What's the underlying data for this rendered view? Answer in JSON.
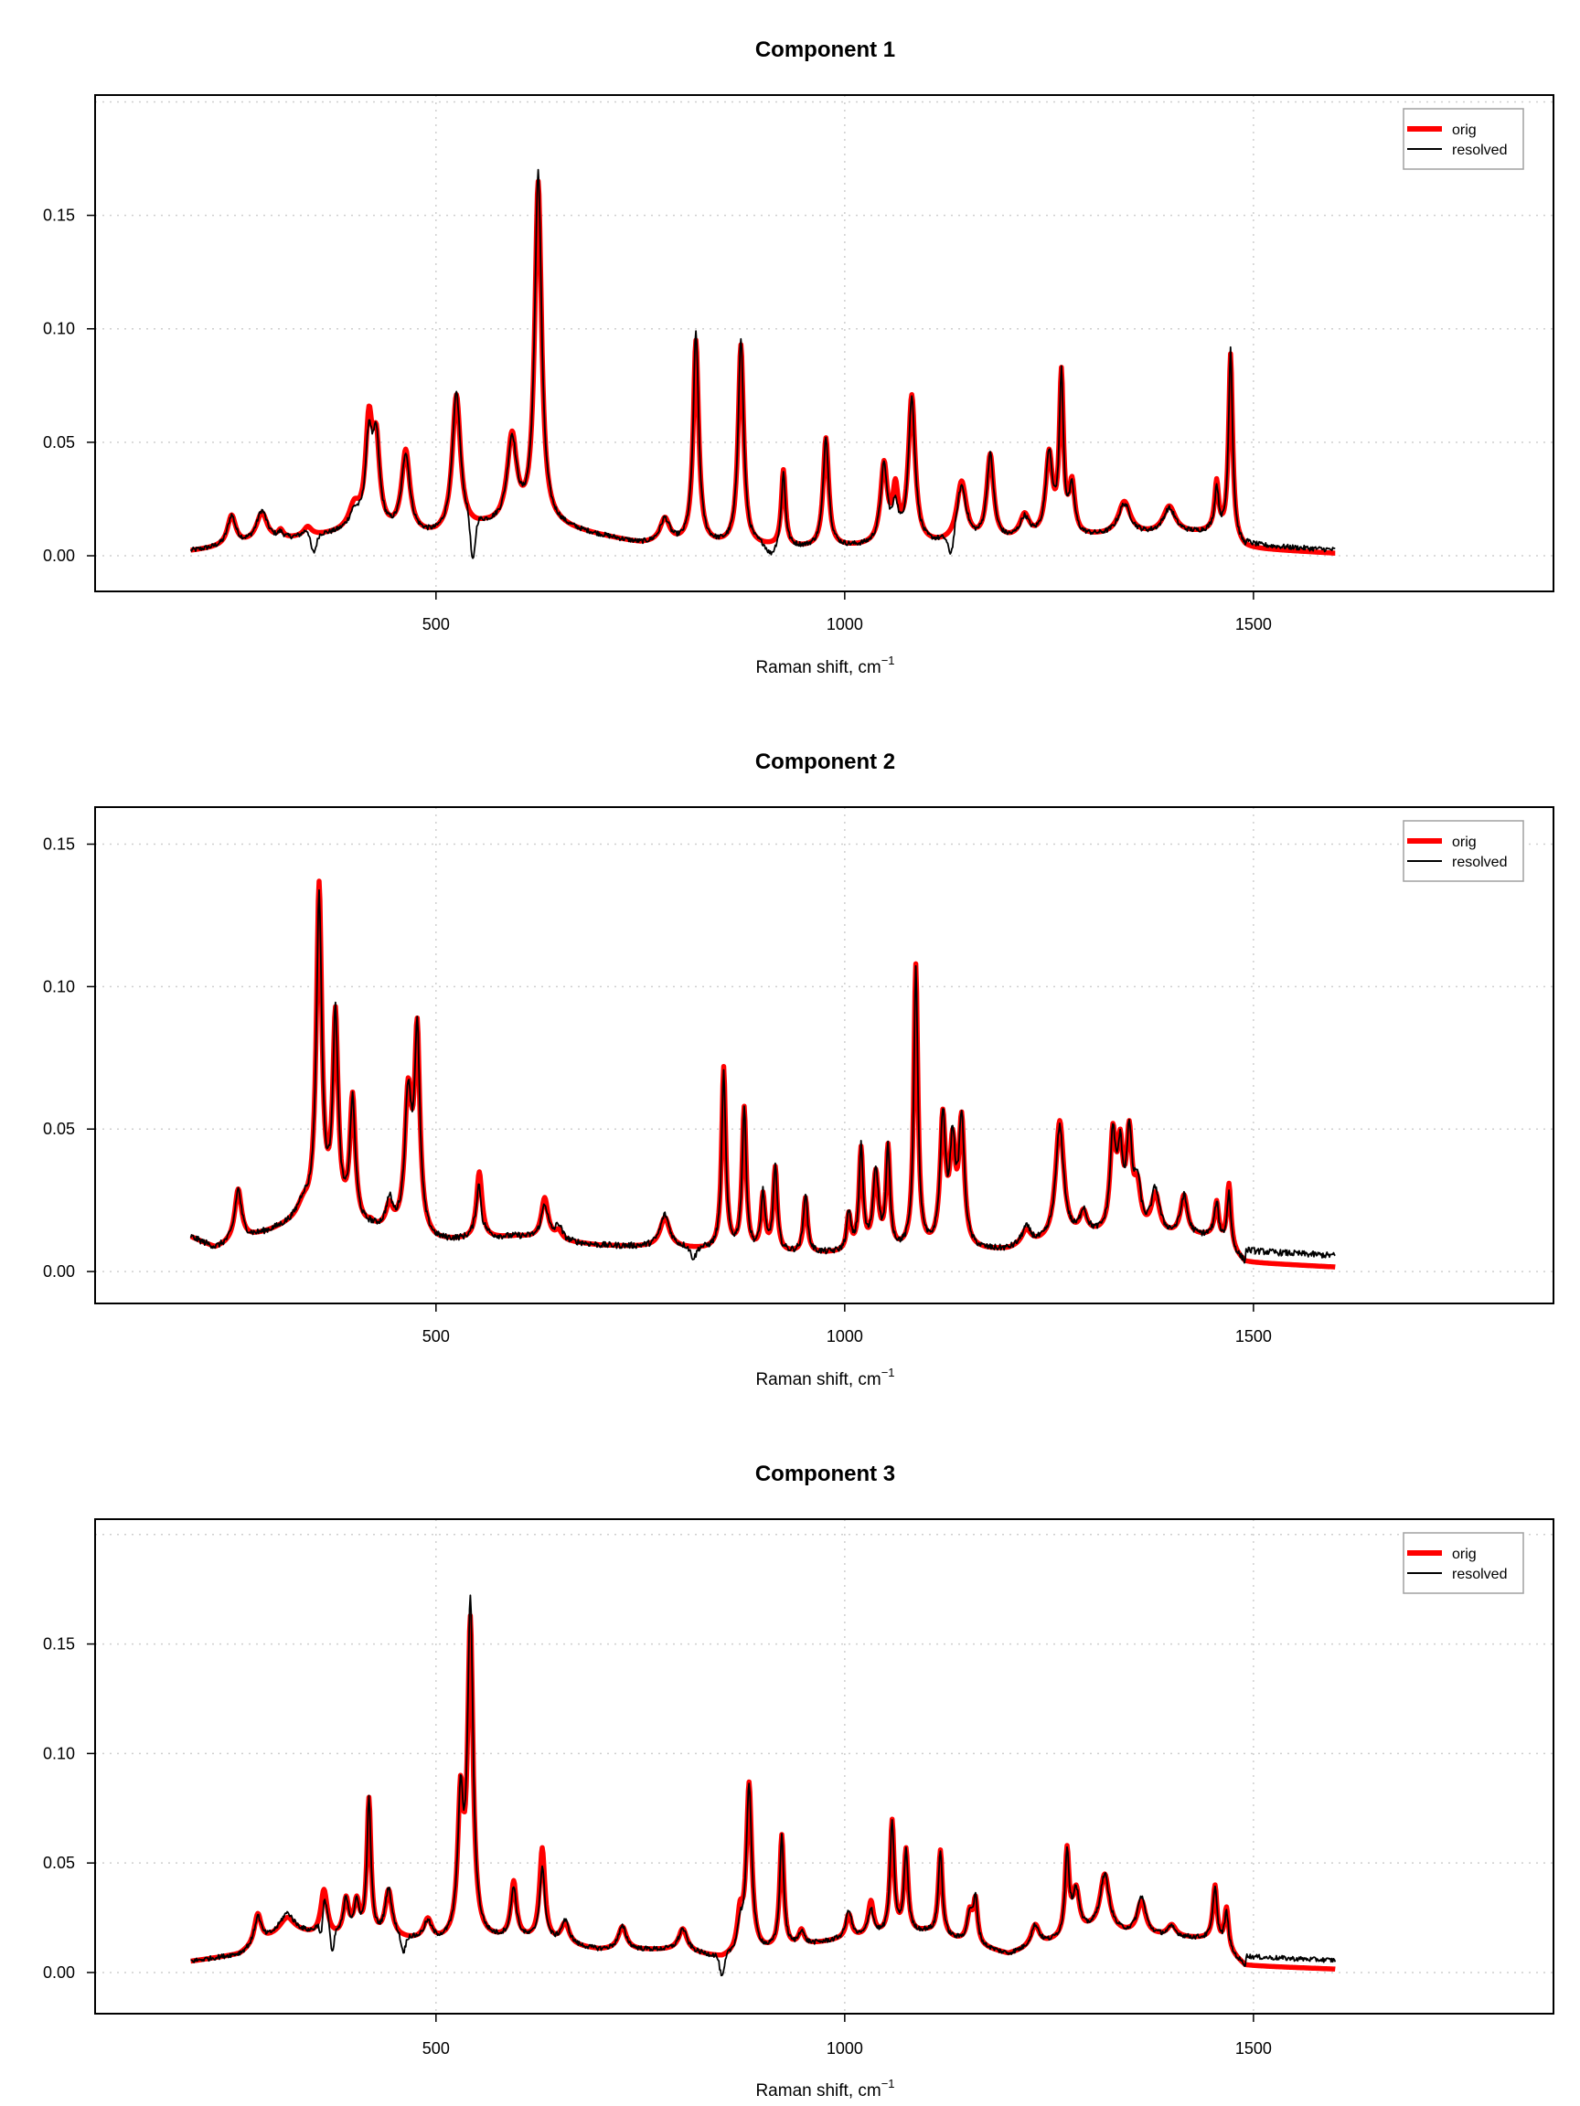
{
  "chart_data": [
    {
      "type": "line",
      "title": "Component 1",
      "xlabel": "Raman shift, cm",
      "xlabel_sup": "−1",
      "xlim": [
        83,
        1867
      ],
      "ylim": [
        -0.0157,
        0.203
      ],
      "xticks": [
        500,
        1000,
        1500
      ],
      "xtick_labels": [
        "500",
        "1000",
        "1500"
      ],
      "yticks": [
        0.0,
        0.05,
        0.1,
        0.15
      ],
      "ytick_labels": [
        "0.00",
        "0.05",
        "0.10",
        "0.15"
      ],
      "grid": true,
      "legend": {
        "position": "top-right",
        "entries": [
          "orig",
          "resolved"
        ]
      },
      "x_range": [
        200,
        1600
      ],
      "baseline": [
        [
          200,
          0.002
        ],
        [
          300,
          0.006
        ],
        [
          400,
          0.01
        ],
        [
          500,
          0.008
        ],
        [
          560,
          0.012
        ],
        [
          650,
          0.012
        ],
        [
          750,
          0.005
        ],
        [
          850,
          0.004
        ],
        [
          950,
          0.003
        ],
        [
          1100,
          0.004
        ],
        [
          1300,
          0.008
        ],
        [
          1450,
          0.01
        ],
        [
          1490,
          0.003
        ],
        [
          1600,
          0.001
        ]
      ],
      "peaks": [
        [
          250,
          0.018,
          0.018,
          6
        ],
        [
          287,
          0.019,
          0.02,
          8
        ],
        [
          310,
          0.012,
          0.011,
          4
        ],
        [
          343,
          0.013,
          0.012,
          6
        ],
        [
          400,
          0.025,
          0.022,
          8
        ],
        [
          418,
          0.066,
          0.06,
          5
        ],
        [
          427,
          0.058,
          0.058,
          5
        ],
        [
          463,
          0.047,
          0.046,
          6
        ],
        [
          525,
          0.071,
          0.072,
          6
        ],
        [
          593,
          0.055,
          0.054,
          7
        ],
        [
          625,
          0.165,
          0.17,
          5
        ],
        [
          780,
          0.017,
          0.017,
          7
        ],
        [
          818,
          0.095,
          0.099,
          4
        ],
        [
          873,
          0.093,
          0.096,
          4
        ],
        [
          925,
          0.038,
          0.037,
          3
        ],
        [
          977,
          0.052,
          0.053,
          4
        ],
        [
          1048,
          0.042,
          0.041,
          5
        ],
        [
          1062,
          0.034,
          0.027,
          4
        ],
        [
          1082,
          0.071,
          0.07,
          5
        ],
        [
          1143,
          0.033,
          0.031,
          7
        ],
        [
          1178,
          0.045,
          0.045,
          5
        ],
        [
          1220,
          0.019,
          0.018,
          7
        ],
        [
          1250,
          0.047,
          0.048,
          5
        ],
        [
          1265,
          0.083,
          0.083,
          3
        ],
        [
          1278,
          0.035,
          0.033,
          4
        ],
        [
          1342,
          0.024,
          0.023,
          9
        ],
        [
          1397,
          0.022,
          0.021,
          9
        ],
        [
          1455,
          0.034,
          0.032,
          3
        ],
        [
          1472,
          0.089,
          0.092,
          3
        ]
      ],
      "resolved_dips": [
        [
          350,
          0.009,
          5
        ],
        [
          545,
          0.02,
          4
        ],
        [
          910,
          0.005,
          8
        ],
        [
          1130,
          0.01,
          5
        ]
      ],
      "series": [
        {
          "name": "orig",
          "color": "#ff0000"
        },
        {
          "name": "resolved",
          "color": "#000000"
        }
      ]
    },
    {
      "type": "line",
      "title": "Component 2",
      "xlabel": "Raman shift, cm",
      "xlabel_sup": "−1",
      "xlim": [
        83,
        1867
      ],
      "ylim": [
        -0.0112,
        0.163
      ],
      "xticks": [
        500,
        1000,
        1500
      ],
      "xtick_labels": [
        "500",
        "1000",
        "1500"
      ],
      "yticks": [
        0.0,
        0.05,
        0.1,
        0.15
      ],
      "ytick_labels": [
        "0.00",
        "0.05",
        "0.10",
        "0.15"
      ],
      "grid": true,
      "legend": {
        "position": "top-right",
        "entries": [
          "orig",
          "resolved"
        ]
      },
      "x_range": [
        200,
        1600
      ],
      "baseline": [
        [
          200,
          0.012
        ],
        [
          230,
          0.008
        ],
        [
          300,
          0.014
        ],
        [
          340,
          0.018
        ],
        [
          500,
          0.01
        ],
        [
          600,
          0.012
        ],
        [
          700,
          0.009
        ],
        [
          800,
          0.008
        ],
        [
          900,
          0.006
        ],
        [
          1000,
          0.006
        ],
        [
          1200,
          0.007
        ],
        [
          1300,
          0.012
        ],
        [
          1450,
          0.012
        ],
        [
          1490,
          0.003
        ],
        [
          1600,
          0.0015
        ]
      ],
      "peaks": [
        [
          258,
          0.029,
          0.029,
          5
        ],
        [
          337,
          0.027,
          0.028,
          8
        ],
        [
          357,
          0.137,
          0.133,
          4
        ],
        [
          377,
          0.093,
          0.094,
          4
        ],
        [
          398,
          0.063,
          0.062,
          4
        ],
        [
          420,
          0.019,
          0.016,
          4
        ],
        [
          443,
          0.025,
          0.027,
          5
        ],
        [
          466,
          0.068,
          0.068,
          5
        ],
        [
          477,
          0.089,
          0.089,
          4
        ],
        [
          553,
          0.035,
          0.035,
          4
        ],
        [
          633,
          0.026,
          0.024,
          5
        ],
        [
          650,
          0.015,
          0.017,
          5
        ],
        [
          780,
          0.019,
          0.02,
          7
        ],
        [
          852,
          0.072,
          0.07,
          3
        ],
        [
          877,
          0.058,
          0.058,
          3
        ],
        [
          900,
          0.028,
          0.029,
          3
        ],
        [
          915,
          0.037,
          0.038,
          3
        ],
        [
          952,
          0.026,
          0.028,
          3
        ],
        [
          1005,
          0.021,
          0.022,
          3
        ],
        [
          1020,
          0.044,
          0.045,
          3
        ],
        [
          1038,
          0.036,
          0.038,
          4
        ],
        [
          1053,
          0.045,
          0.045,
          3
        ],
        [
          1087,
          0.108,
          0.107,
          3
        ],
        [
          1120,
          0.057,
          0.058,
          4
        ],
        [
          1132,
          0.05,
          0.052,
          4
        ],
        [
          1143,
          0.056,
          0.057,
          4
        ],
        [
          1222,
          0.015,
          0.016,
          7
        ],
        [
          1263,
          0.053,
          0.051,
          6
        ],
        [
          1292,
          0.022,
          0.023,
          5
        ],
        [
          1328,
          0.052,
          0.052,
          4
        ],
        [
          1337,
          0.05,
          0.049,
          4
        ],
        [
          1348,
          0.053,
          0.053,
          4
        ],
        [
          1358,
          0.034,
          0.036,
          5
        ],
        [
          1380,
          0.028,
          0.03,
          6
        ],
        [
          1415,
          0.027,
          0.027,
          5
        ],
        [
          1455,
          0.025,
          0.025,
          3
        ],
        [
          1470,
          0.031,
          0.028,
          3
        ]
      ],
      "resolved_dips": [
        [
          555,
          0.006,
          4
        ],
        [
          815,
          0.004,
          5
        ]
      ],
      "resolved_offset_tail": 0.004,
      "series": [
        {
          "name": "orig",
          "color": "#ff0000"
        },
        {
          "name": "resolved",
          "color": "#000000"
        }
      ]
    },
    {
      "type": "line",
      "title": "Component 3",
      "xlabel": "Raman shift, cm",
      "xlabel_sup": "−1",
      "xlim": [
        83,
        1867
      ],
      "ylim": [
        -0.0188,
        0.207
      ],
      "xticks": [
        500,
        1000,
        1500
      ],
      "xtick_labels": [
        "500",
        "1000",
        "1500"
      ],
      "yticks": [
        0.0,
        0.05,
        0.1,
        0.15
      ],
      "ytick_labels": [
        "0.00",
        "0.05",
        "0.10",
        "0.15"
      ],
      "grid": true,
      "legend": {
        "position": "top-right",
        "entries": [
          "orig",
          "resolved"
        ]
      },
      "x_range": [
        200,
        1600
      ],
      "baseline": [
        [
          200,
          0.005
        ],
        [
          260,
          0.008
        ],
        [
          320,
          0.02
        ],
        [
          360,
          0.015
        ],
        [
          450,
          0.015
        ],
        [
          500,
          0.013
        ],
        [
          600,
          0.015
        ],
        [
          700,
          0.01
        ],
        [
          800,
          0.01
        ],
        [
          850,
          0.006
        ],
        [
          950,
          0.012
        ],
        [
          1000,
          0.015
        ],
        [
          1100,
          0.018
        ],
        [
          1200,
          0.008
        ],
        [
          1300,
          0.018
        ],
        [
          1450,
          0.015
        ],
        [
          1490,
          0.003
        ],
        [
          1600,
          0.0015
        ]
      ],
      "peaks": [
        [
          282,
          0.027,
          0.026,
          5
        ],
        [
          317,
          0.025,
          0.027,
          10
        ],
        [
          363,
          0.038,
          0.036,
          5
        ],
        [
          390,
          0.035,
          0.035,
          4
        ],
        [
          403,
          0.035,
          0.034,
          4
        ],
        [
          418,
          0.08,
          0.08,
          3
        ],
        [
          442,
          0.038,
          0.039,
          5
        ],
        [
          490,
          0.025,
          0.024,
          6
        ],
        [
          530,
          0.09,
          0.09,
          4
        ],
        [
          542,
          0.163,
          0.173,
          4
        ],
        [
          595,
          0.042,
          0.04,
          4
        ],
        [
          630,
          0.057,
          0.048,
          4
        ],
        [
          658,
          0.023,
          0.024,
          6
        ],
        [
          728,
          0.021,
          0.021,
          6
        ],
        [
          802,
          0.02,
          0.02,
          6
        ],
        [
          872,
          0.033,
          0.028,
          4
        ],
        [
          883,
          0.087,
          0.087,
          4
        ],
        [
          923,
          0.063,
          0.063,
          3
        ],
        [
          947,
          0.02,
          0.02,
          4
        ],
        [
          1005,
          0.027,
          0.029,
          4
        ],
        [
          1032,
          0.033,
          0.03,
          4
        ],
        [
          1058,
          0.07,
          0.07,
          3
        ],
        [
          1075,
          0.057,
          0.057,
          3
        ],
        [
          1117,
          0.056,
          0.056,
          3
        ],
        [
          1153,
          0.03,
          0.03,
          4
        ],
        [
          1160,
          0.035,
          0.036,
          3
        ],
        [
          1233,
          0.022,
          0.022,
          6
        ],
        [
          1272,
          0.058,
          0.058,
          3
        ],
        [
          1283,
          0.04,
          0.04,
          5
        ],
        [
          1318,
          0.045,
          0.045,
          7
        ],
        [
          1363,
          0.033,
          0.035,
          6
        ],
        [
          1400,
          0.022,
          0.021,
          6
        ],
        [
          1453,
          0.04,
          0.04,
          3
        ],
        [
          1467,
          0.03,
          0.028,
          3
        ]
      ],
      "resolved_dips": [
        [
          360,
          0.012,
          3
        ],
        [
          373,
          0.012,
          3
        ],
        [
          460,
          0.008,
          4
        ],
        [
          850,
          0.01,
          4
        ]
      ],
      "resolved_offset_tail": 0.004,
      "series": [
        {
          "name": "orig",
          "color": "#ff0000"
        },
        {
          "name": "resolved",
          "color": "#000000"
        }
      ]
    }
  ]
}
